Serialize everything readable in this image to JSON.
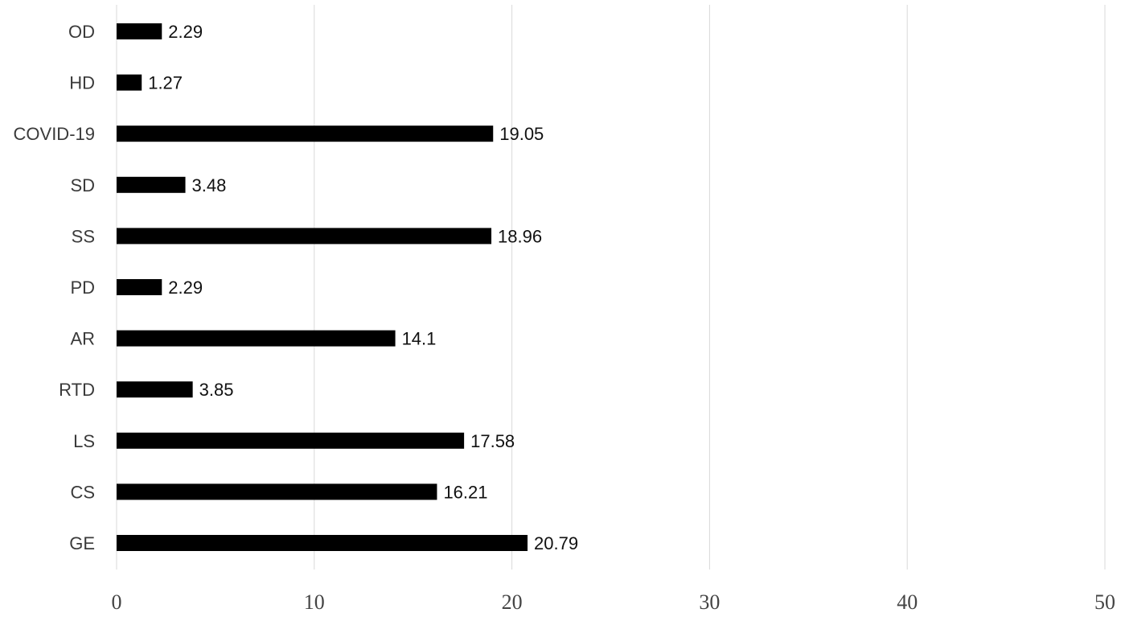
{
  "chart_data": {
    "type": "bar",
    "orientation": "horizontal",
    "categories": [
      "GE",
      "CS",
      "LS",
      "RTD",
      "AR",
      "PD",
      "SS",
      "SD",
      "COVID-19",
      "HD",
      "OD"
    ],
    "values": [
      20.79,
      16.21,
      17.58,
      3.85,
      14.1,
      2.29,
      18.96,
      3.48,
      19.05,
      1.27,
      2.29
    ],
    "value_labels": [
      "20.79",
      "16.21",
      "17.58",
      "3.85",
      "14.1",
      "2.29",
      "18.96",
      "3.48",
      "19.05",
      "1.27",
      "2.29"
    ],
    "xlim": [
      0,
      50
    ],
    "xticks": [
      0,
      10,
      20,
      30,
      40,
      50
    ],
    "xtick_labels": [
      "0",
      "10",
      "20",
      "30",
      "40",
      "50"
    ],
    "grid": "vertical",
    "legend": "none",
    "bar_color": "#000000",
    "grid_color": "#d9d9d9"
  }
}
